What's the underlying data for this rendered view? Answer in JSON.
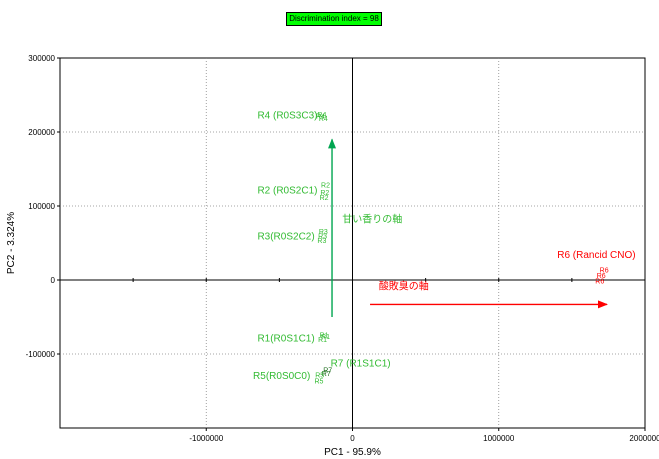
{
  "badge": {
    "label": "Discrimination index = 98",
    "color": "#00ff00"
  },
  "chart_data": {
    "type": "scatter",
    "xlabel": "PC1 - 95.9%",
    "ylabel": "PC2 - 3.324%",
    "xlim": [
      -2000000,
      2000000
    ],
    "ylim": [
      -200000,
      300000
    ],
    "xticks": [
      -1000000,
      0,
      1000000,
      2000000
    ],
    "yticks": [
      -100000,
      0,
      100000,
      200000,
      300000
    ],
    "xtick_labels": [
      "-1000000",
      "0",
      "1000000",
      "2000000"
    ],
    "ytick_labels": [
      "-100000",
      "0",
      "100000",
      "200000",
      "300000"
    ],
    "grid": true,
    "zero_lines": true,
    "colors": {
      "green": "#33bb33",
      "darkgreen": "#116611",
      "red": "#ff0000"
    },
    "points": [
      {
        "marker": "R4",
        "x": -240000,
        "y": 220000,
        "color": "green"
      },
      {
        "marker": "R4",
        "x": -230000,
        "y": 215000,
        "color": "green"
      },
      {
        "marker": "R4",
        "x": -250000,
        "y": 218000,
        "color": "green"
      },
      {
        "marker": "R2",
        "x": -215000,
        "y": 125000,
        "color": "green"
      },
      {
        "marker": "R2",
        "x": -220000,
        "y": 115000,
        "color": "green"
      },
      {
        "marker": "R2",
        "x": -225000,
        "y": 108000,
        "color": "green"
      },
      {
        "marker": "R3",
        "x": -230000,
        "y": 62000,
        "color": "green"
      },
      {
        "marker": "R3",
        "x": -235000,
        "y": 56000,
        "color": "green"
      },
      {
        "marker": "R3",
        "x": -240000,
        "y": 50000,
        "color": "green"
      },
      {
        "marker": "R1",
        "x": -225000,
        "y": -78000,
        "color": "green"
      },
      {
        "marker": "R1",
        "x": -215000,
        "y": -80000,
        "color": "green"
      },
      {
        "marker": "R1",
        "x": -235000,
        "y": -84000,
        "color": "green"
      },
      {
        "marker": "R7",
        "x": -200000,
        "y": -125000,
        "color": "darkgreen"
      },
      {
        "marker": "R7",
        "x": -210000,
        "y": -130000,
        "color": "darkgreen"
      },
      {
        "marker": "R5",
        "x": -255000,
        "y": -132000,
        "color": "green"
      },
      {
        "marker": "R5",
        "x": -260000,
        "y": -140000,
        "color": "green"
      },
      {
        "marker": "R6",
        "x": 1690000,
        "y": 10000,
        "color": "red"
      },
      {
        "marker": "R6",
        "x": 1670000,
        "y": 3000,
        "color": "red"
      },
      {
        "marker": "R6",
        "x": 1660000,
        "y": -5000,
        "color": "red"
      }
    ],
    "annotations": [
      {
        "text": "R4 (R0S3C3)",
        "x": -650000,
        "y": 218000,
        "color": "green"
      },
      {
        "text": "R2 (R0S2C1)",
        "x": -650000,
        "y": 117000,
        "color": "green"
      },
      {
        "text": "R3(R0S2C2)",
        "x": -650000,
        "y": 55000,
        "color": "green"
      },
      {
        "text": "甘い香りの軸",
        "x": -70000,
        "y": 78000,
        "color": "green"
      },
      {
        "text": "R1(R0S1C1)",
        "x": -650000,
        "y": -83000,
        "color": "green"
      },
      {
        "text": "R7 (R1S1C1)",
        "x": -150000,
        "y": -117000,
        "color": "green"
      },
      {
        "text": "R5(R0S0C0)",
        "x": -680000,
        "y": -134000,
        "color": "green"
      },
      {
        "text": "R6 (Rancid CNO)",
        "x": 1400000,
        "y": 30000,
        "color": "red"
      },
      {
        "text": "酸敗臭の軸",
        "x": 180000,
        "y": -13000,
        "color": "red"
      }
    ],
    "arrows": [
      {
        "x1": -140000,
        "y1": -50000,
        "x2": -140000,
        "y2": 190000,
        "color": "#00a550"
      },
      {
        "x1": 120000,
        "y1": -33000,
        "x2": 1740000,
        "y2": -33000,
        "color": "#ff0000"
      }
    ]
  }
}
